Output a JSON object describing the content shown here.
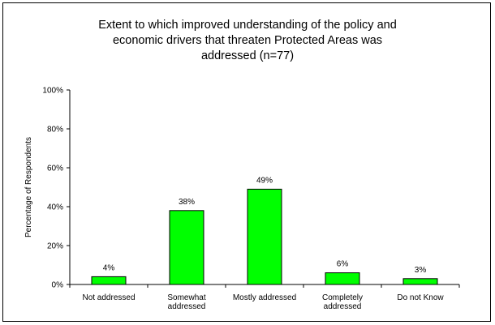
{
  "chart_data": {
    "type": "bar",
    "title_lines": [
      "Extent to which improved understanding of the policy and",
      "economic drivers that threaten Protected Areas was",
      "addressed (n=77)"
    ],
    "ylabel": "Percentage of Respondents",
    "xlabel": "",
    "ylim": [
      0,
      100
    ],
    "yticks": [
      "0%",
      "20%",
      "40%",
      "60%",
      "80%",
      "100%"
    ],
    "categories": [
      [
        "Not addressed"
      ],
      [
        "Somewhat",
        "addressed"
      ],
      [
        "Mostly addressed"
      ],
      [
        "Completely",
        "addressed"
      ],
      [
        "Do not Know"
      ]
    ],
    "values": [
      4,
      38,
      49,
      6,
      3
    ],
    "data_labels": [
      "4%",
      "38%",
      "49%",
      "6%",
      "3%"
    ],
    "bar_color": "#00ff00",
    "grid": false,
    "legend": "none"
  }
}
